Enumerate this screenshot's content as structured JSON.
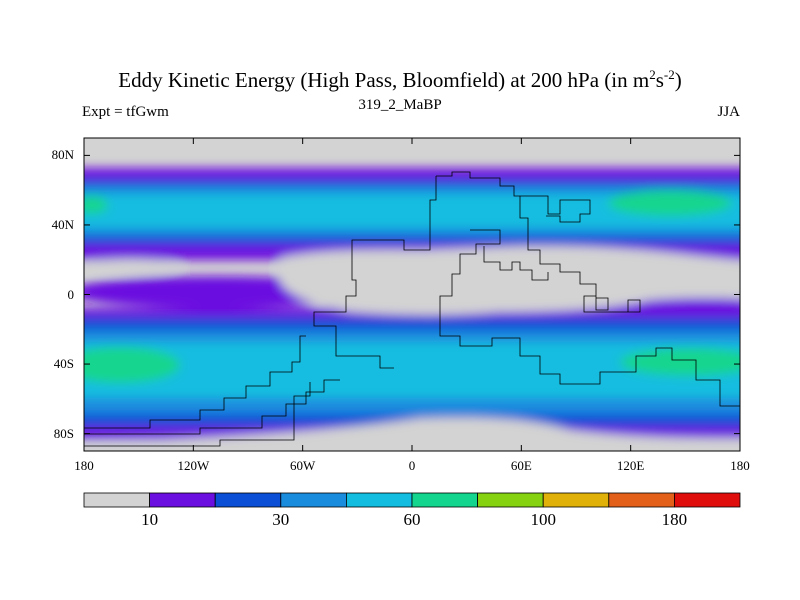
{
  "title": {
    "main": "Eddy Kinetic Energy (High Pass, Bloomfield) at 200 hPa (in m",
    "sup1": "2",
    "mid": "s",
    "sup2": "-2",
    "end": ")"
  },
  "subtitle": "319_2_MaBP",
  "left_label": "Expt = tfGwm",
  "right_label": "JJA",
  "map": {
    "lon_range": [
      -180,
      180
    ],
    "lat_range": [
      -90,
      90
    ],
    "lat_ticks": [
      {
        "value": 80,
        "label": "80N"
      },
      {
        "value": 40,
        "label": "40N"
      },
      {
        "value": 0,
        "label": "0"
      },
      {
        "value": -40,
        "label": "40S"
      },
      {
        "value": -80,
        "label": "80S"
      }
    ],
    "lon_ticks": [
      {
        "value": -180,
        "label": "180"
      },
      {
        "value": -120,
        "label": "120W"
      },
      {
        "value": -60,
        "label": "60W"
      },
      {
        "value": 0,
        "label": "0"
      },
      {
        "value": 60,
        "label": "60E"
      },
      {
        "value": 120,
        "label": "120E"
      },
      {
        "value": 180,
        "label": "180"
      }
    ]
  },
  "colorbar": {
    "colors": [
      "#d3d3d3",
      "#6a0fe0",
      "#0a4fd6",
      "#1a8cde",
      "#12bde0",
      "#14d58e",
      "#86d110",
      "#e0b108",
      "#e2601a",
      "#e00d0d"
    ],
    "labels": [
      {
        "index": 1,
        "text": "10"
      },
      {
        "index": 3,
        "text": "30"
      },
      {
        "index": 5,
        "text": "60"
      },
      {
        "index": 7,
        "text": "100"
      },
      {
        "index": 9,
        "text": "180"
      }
    ]
  }
}
